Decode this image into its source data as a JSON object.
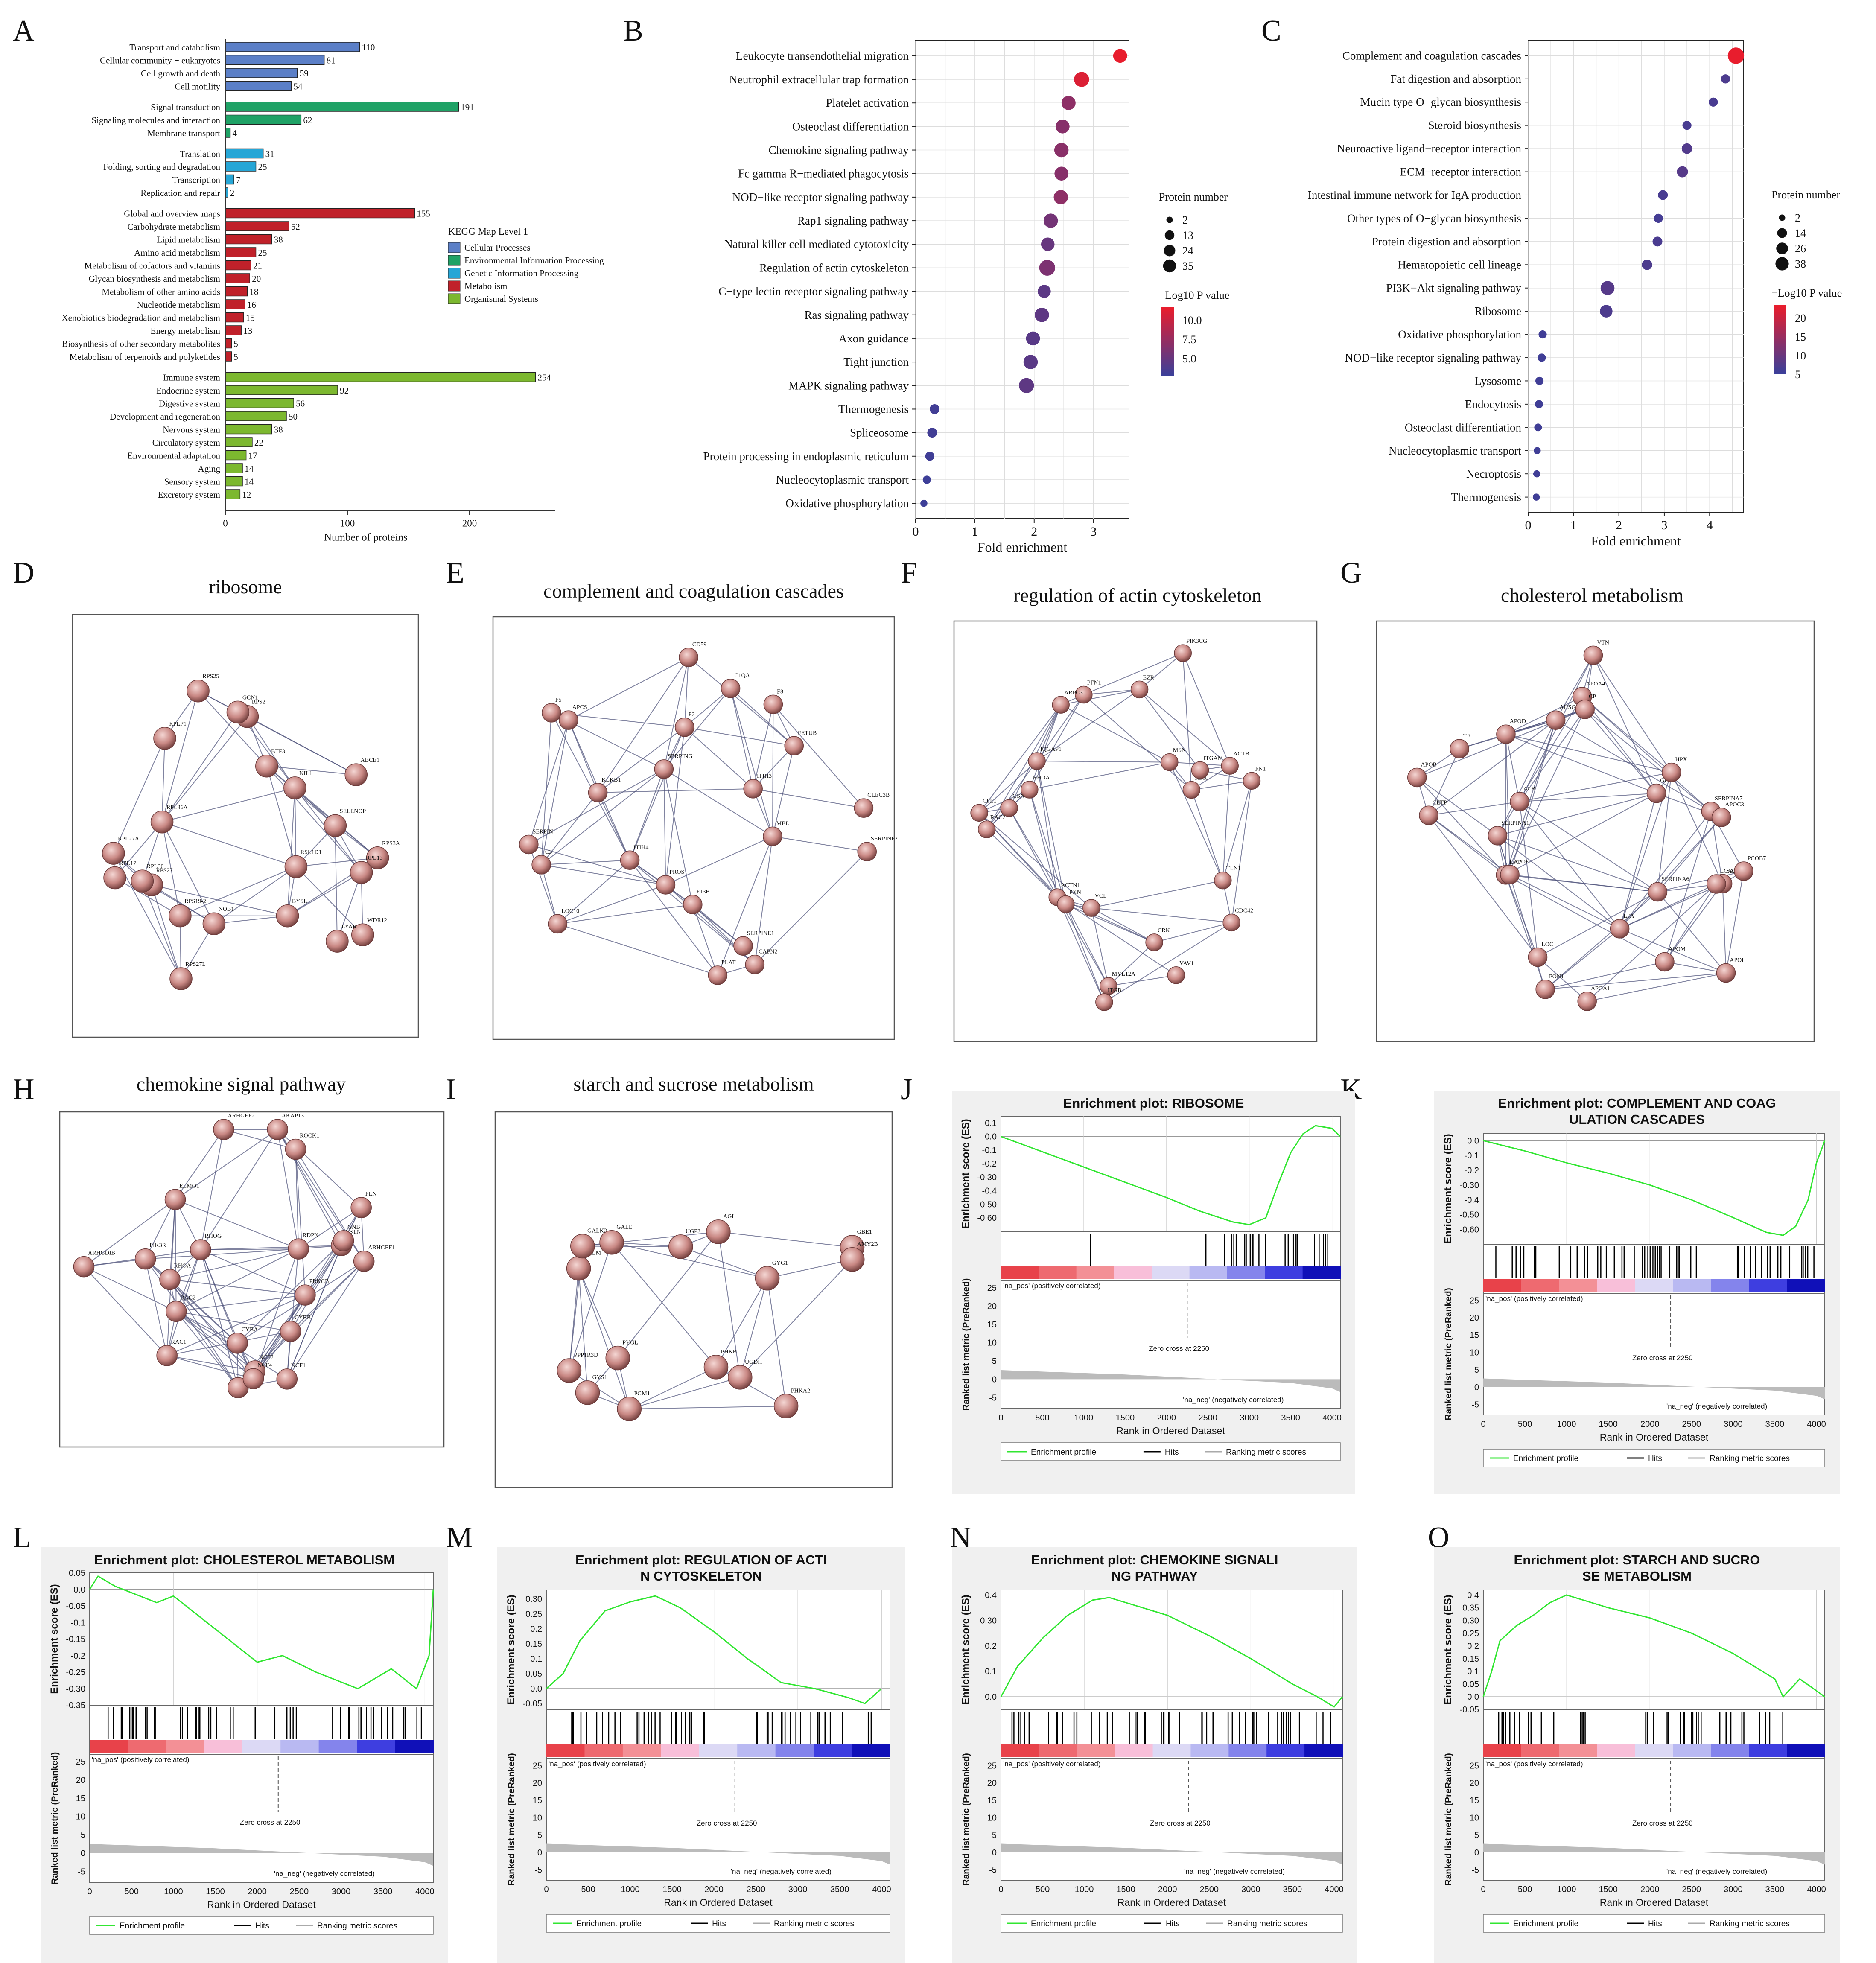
{
  "panel_letters": [
    "A",
    "B",
    "C",
    "D",
    "E",
    "F",
    "G",
    "H",
    "I",
    "J",
    "K",
    "L",
    "M",
    "N",
    "O"
  ],
  "chart_data": [
    {
      "panel": "A",
      "type": "bar",
      "orientation": "horizontal",
      "xlabel": "Number of proteins",
      "xticks": [
        0,
        100,
        200
      ],
      "xlim": [
        0,
        270
      ],
      "legend_title": "KEGG Map Level 1",
      "legend_position": "right",
      "groups": [
        {
          "name": "Cellular Processes",
          "color": "#5b7fc7",
          "items": [
            {
              "label": "Transport and catabolism",
              "value": 110
            },
            {
              "label": "Cellular community − eukaryotes",
              "value": 81
            },
            {
              "label": "Cell growth and death",
              "value": 59
            },
            {
              "label": "Cell motility",
              "value": 54
            }
          ]
        },
        {
          "name": "Environmental Information Processing",
          "color": "#1fa266",
          "items": [
            {
              "label": "Signal transduction",
              "value": 191
            },
            {
              "label": "Signaling molecules and interaction",
              "value": 62
            },
            {
              "label": "Membrane transport",
              "value": 4
            }
          ]
        },
        {
          "name": "Genetic Information Processing",
          "color": "#26a6d6",
          "items": [
            {
              "label": "Translation",
              "value": 31
            },
            {
              "label": "Folding, sorting and degradation",
              "value": 25
            },
            {
              "label": "Transcription",
              "value": 7
            },
            {
              "label": "Replication and repair",
              "value": 2
            }
          ]
        },
        {
          "name": "Metabolism",
          "color": "#c0212a",
          "items": [
            {
              "label": "Global and overview maps",
              "value": 155
            },
            {
              "label": "Carbohydrate metabolism",
              "value": 52
            },
            {
              "label": "Lipid metabolism",
              "value": 38
            },
            {
              "label": "Amino acid metabolism",
              "value": 25
            },
            {
              "label": "Metabolism of cofactors and vitamins",
              "value": 21
            },
            {
              "label": "Glycan biosynthesis and metabolism",
              "value": 20
            },
            {
              "label": "Metabolism of other amino acids",
              "value": 18
            },
            {
              "label": "Nucleotide metabolism",
              "value": 16
            },
            {
              "label": "Xenobiotics biodegradation and metabolism",
              "value": 15
            },
            {
              "label": "Energy metabolism",
              "value": 13
            },
            {
              "label": "Biosynthesis of other secondary metabolites",
              "value": 5
            },
            {
              "label": "Metabolism of terpenoids and polyketides",
              "value": 5
            }
          ]
        },
        {
          "name": "Organismal Systems",
          "color": "#7cb82f",
          "items": [
            {
              "label": "Immune system",
              "value": 254
            },
            {
              "label": "Endocrine system",
              "value": 92
            },
            {
              "label": "Digestive system",
              "value": 56
            },
            {
              "label": "Development and regeneration",
              "value": 50
            },
            {
              "label": "Nervous system",
              "value": 38
            },
            {
              "label": "Circulatory system",
              "value": 22
            },
            {
              "label": "Environmental adaptation",
              "value": 17
            },
            {
              "label": "Aging",
              "value": 14
            },
            {
              "label": "Sensory system",
              "value": 14
            },
            {
              "label": "Excretory system",
              "value": 12
            }
          ]
        }
      ]
    },
    {
      "panel": "B",
      "type": "scatter",
      "subtype": "bubble",
      "xlabel": "Fold enrichment",
      "xticks": [
        0,
        1,
        2,
        3
      ],
      "xlim": [
        0,
        3.6
      ],
      "size_legend_title": "Protein number",
      "size_legend": [
        2,
        13,
        24,
        35
      ],
      "color_legend_title": "−Log10 P value",
      "color_ticks": [
        "10.0",
        "7.5",
        "5.0"
      ],
      "color_range": [
        3,
        11
      ],
      "terms": [
        {
          "label": "Leukocyte transendothelial migration",
          "x": 3.45,
          "p": 11.0,
          "n": 24
        },
        {
          "label": "Neutrophil extracellular trap formation",
          "x": 2.8,
          "p": 10.4,
          "n": 30
        },
        {
          "label": "Platelet activation",
          "x": 2.58,
          "p": 6.8,
          "n": 25
        },
        {
          "label": "Osteoclast differentiation",
          "x": 2.48,
          "p": 6.5,
          "n": 24
        },
        {
          "label": "Chemokine signaling pathway",
          "x": 2.46,
          "p": 6.6,
          "n": 26
        },
        {
          "label": "Fc gamma R−mediated phagocytosis",
          "x": 2.46,
          "p": 6.5,
          "n": 24
        },
        {
          "label": "NOD−like receptor signaling pathway",
          "x": 2.45,
          "p": 6.8,
          "n": 26
        },
        {
          "label": "Rap1 signaling pathway",
          "x": 2.28,
          "p": 5.6,
          "n": 26
        },
        {
          "label": "Natural killer cell mediated cytotoxicity",
          "x": 2.23,
          "p": 5.0,
          "n": 22
        },
        {
          "label": "Regulation of actin cytoskeleton",
          "x": 2.22,
          "p": 6.0,
          "n": 35
        },
        {
          "label": "C−type lectin receptor signaling pathway",
          "x": 2.17,
          "p": 4.5,
          "n": 20
        },
        {
          "label": "Ras signaling pathway",
          "x": 2.13,
          "p": 4.6,
          "n": 26
        },
        {
          "label": "Axon guidance",
          "x": 1.98,
          "p": 4.3,
          "n": 24
        },
        {
          "label": "Tight junction",
          "x": 1.94,
          "p": 4.4,
          "n": 26
        },
        {
          "label": "MAPK signaling pathway",
          "x": 1.87,
          "p": 4.6,
          "n": 30
        },
        {
          "label": "Thermogenesis",
          "x": 0.32,
          "p": 3.3,
          "n": 8
        },
        {
          "label": "Spliceosome",
          "x": 0.28,
          "p": 3.3,
          "n": 8
        },
        {
          "label": "Protein processing in endoplasmic reticulum",
          "x": 0.24,
          "p": 3.2,
          "n": 6
        },
        {
          "label": "Nucleocytoplasmic transport",
          "x": 0.19,
          "p": 3.1,
          "n": 4
        },
        {
          "label": "Oxidative phosphorylation",
          "x": 0.14,
          "p": 3.1,
          "n": 2
        }
      ]
    },
    {
      "panel": "C",
      "type": "scatter",
      "subtype": "bubble",
      "xlabel": "Fold enrichment",
      "xticks": [
        0,
        1,
        2,
        3,
        4
      ],
      "xlim": [
        0,
        4.75
      ],
      "size_legend_title": "Protein number",
      "size_legend": [
        2,
        14,
        26,
        38
      ],
      "color_legend_title": "−Log10 P value",
      "color_ticks": [
        "20",
        "15",
        "10",
        "5"
      ],
      "color_range": [
        2,
        22
      ],
      "terms": [
        {
          "label": "Complement and coagulation cascades",
          "x": 4.58,
          "p": 22.0,
          "n": 38
        },
        {
          "label": "Fat digestion and absorption",
          "x": 4.35,
          "p": 4.0,
          "n": 6
        },
        {
          "label": "Mucin type O−glycan biosynthesis",
          "x": 4.08,
          "p": 3.5,
          "n": 6
        },
        {
          "label": "Steroid biosynthesis",
          "x": 3.5,
          "p": 3.5,
          "n": 6
        },
        {
          "label": "Neuroactive ligand−receptor interaction",
          "x": 3.5,
          "p": 4.5,
          "n": 10
        },
        {
          "label": "ECM−receptor interaction",
          "x": 3.4,
          "p": 5.0,
          "n": 12
        },
        {
          "label": "Intestinal immune network for IgA production",
          "x": 2.97,
          "p": 3.5,
          "n": 8
        },
        {
          "label": "Other types of O−glycan biosynthesis",
          "x": 2.87,
          "p": 3.0,
          "n": 6
        },
        {
          "label": "Protein digestion and absorption",
          "x": 2.85,
          "p": 3.6,
          "n": 8
        },
        {
          "label": "Hematopoietic cell lineage",
          "x": 2.62,
          "p": 4.0,
          "n": 10
        },
        {
          "label": "PI3K−Akt signaling pathway",
          "x": 1.75,
          "p": 5.0,
          "n": 24
        },
        {
          "label": "Ribosome",
          "x": 1.72,
          "p": 4.0,
          "n": 18
        },
        {
          "label": "Oxidative phosphorylation",
          "x": 0.32,
          "p": 2.5,
          "n": 4
        },
        {
          "label": "NOD−like receptor signaling pathway",
          "x": 0.3,
          "p": 2.5,
          "n": 4
        },
        {
          "label": "Lysosome",
          "x": 0.25,
          "p": 2.5,
          "n": 4
        },
        {
          "label": "Endocytosis",
          "x": 0.24,
          "p": 2.5,
          "n": 4
        },
        {
          "label": "Osteoclast differentiation",
          "x": 0.22,
          "p": 2.5,
          "n": 3
        },
        {
          "label": "Nucleocytoplasmic transport",
          "x": 0.2,
          "p": 2.5,
          "n": 2
        },
        {
          "label": "Necroptosis",
          "x": 0.19,
          "p": 2.5,
          "n": 2
        },
        {
          "label": "Thermogenesis",
          "x": 0.18,
          "p": 2.5,
          "n": 2
        }
      ]
    },
    {
      "panel": "J",
      "type": "line",
      "title": "Enrichment plot: RIBOSOME",
      "ylim": [
        -0.7,
        0.15
      ],
      "yticks": [
        0.1,
        0.0,
        -0.1,
        -0.2,
        -0.3,
        -0.4,
        -0.5,
        -0.6
      ],
      "profile_x": [
        0,
        400,
        800,
        1200,
        1600,
        2000,
        2400,
        2800,
        3000,
        3200,
        3350,
        3500,
        3650,
        3800,
        4000,
        4100
      ],
      "profile_y": [
        0.0,
        -0.09,
        -0.18,
        -0.27,
        -0.36,
        -0.45,
        -0.55,
        -0.63,
        -0.65,
        -0.6,
        -0.35,
        -0.12,
        0.02,
        0.08,
        0.06,
        0.0
      ],
      "hits_ranges": [
        [
          1080,
          1080
        ],
        [
          2450,
          4000
        ]
      ]
    },
    {
      "panel": "K",
      "type": "line",
      "title": "Enrichment plot: COMPLEMENT AND COAGULATION CASCADES",
      "ylim": [
        -0.7,
        0.05
      ],
      "yticks": [
        0.0,
        -0.1,
        -0.2,
        -0.3,
        -0.4,
        -0.5,
        -0.6
      ],
      "profile_x": [
        0,
        500,
        1000,
        1500,
        2000,
        2500,
        3000,
        3400,
        3600,
        3750,
        3900,
        4000,
        4100
      ],
      "profile_y": [
        0.0,
        -0.07,
        -0.15,
        -0.22,
        -0.3,
        -0.4,
        -0.52,
        -0.62,
        -0.64,
        -0.58,
        -0.4,
        -0.15,
        0.0
      ],
      "hits_ranges": [
        [
          100,
          2600
        ],
        [
          2900,
          4050
        ]
      ]
    },
    {
      "panel": "L",
      "type": "line",
      "title": "Enrichment plot: CHOLESTEROL METABOLISM",
      "ylim": [
        -0.35,
        0.05
      ],
      "yticks": [
        0.05,
        0.0,
        -0.05,
        -0.1,
        -0.15,
        -0.2,
        -0.25,
        -0.3,
        -0.35
      ],
      "profile_x": [
        0,
        100,
        300,
        600,
        800,
        1000,
        1500,
        2000,
        2300,
        2700,
        3200,
        3600,
        3900,
        4050,
        4100
      ],
      "profile_y": [
        0.0,
        0.04,
        0.01,
        -0.02,
        -0.04,
        -0.02,
        -0.12,
        -0.22,
        -0.2,
        -0.25,
        -0.3,
        -0.24,
        -0.3,
        -0.2,
        0.0
      ],
      "hits_ranges": [
        [
          100,
          2500
        ],
        [
          2800,
          4050
        ]
      ]
    },
    {
      "panel": "M",
      "type": "line",
      "title": "Enrichment plot: REGULATION OF ACTIN CYTOSKELETON",
      "ylim": [
        -0.07,
        0.33
      ],
      "yticks": [
        0.3,
        0.25,
        0.2,
        0.15,
        0.1,
        0.05,
        0.0,
        -0.05
      ],
      "profile_x": [
        0,
        200,
        400,
        700,
        1000,
        1300,
        1600,
        2000,
        2400,
        2800,
        3200,
        3600,
        3800,
        4000
      ],
      "profile_y": [
        0.0,
        0.05,
        0.16,
        0.26,
        0.29,
        0.31,
        0.27,
        0.19,
        0.1,
        0.02,
        0.0,
        -0.03,
        -0.05,
        0.0
      ],
      "hits_ranges": [
        [
          50,
          1900
        ],
        [
          2400,
          3900
        ]
      ]
    },
    {
      "panel": "N",
      "type": "line",
      "title": "Enrichment plot: CHEMOKINE SIGNALING PATHWAY",
      "ylim": [
        -0.05,
        0.42
      ],
      "yticks": [
        0.4,
        0.3,
        0.2,
        0.1,
        0.0
      ],
      "profile_x": [
        0,
        200,
        500,
        800,
        1100,
        1300,
        1600,
        2000,
        2500,
        3000,
        3500,
        3800,
        4000,
        4100
      ],
      "profile_y": [
        0.0,
        0.12,
        0.23,
        0.32,
        0.38,
        0.39,
        0.36,
        0.32,
        0.24,
        0.15,
        0.05,
        0.0,
        -0.04,
        0.0
      ],
      "hits_ranges": [
        [
          20,
          2200
        ],
        [
          2400,
          4000
        ]
      ]
    },
    {
      "panel": "O",
      "type": "line",
      "title": "Enrichment plot: STARCH AND SUCROSE METABOLISM",
      "ylim": [
        -0.05,
        0.42
      ],
      "yticks": [
        0.4,
        0.35,
        0.3,
        0.25,
        0.2,
        0.15,
        0.1,
        0.05,
        0.0,
        -0.05
      ],
      "profile_x": [
        0,
        100,
        200,
        400,
        600,
        800,
        1000,
        1500,
        2000,
        2500,
        3000,
        3500,
        3600,
        3800,
        4100
      ],
      "profile_y": [
        0.0,
        0.1,
        0.22,
        0.28,
        0.32,
        0.37,
        0.4,
        0.35,
        0.31,
        0.25,
        0.17,
        0.07,
        0.0,
        0.07,
        0.0
      ],
      "hits_ranges": [
        [
          100,
          1300
        ],
        [
          1900,
          3600
        ]
      ]
    }
  ],
  "gsea_common": {
    "ylabel_top": "Enrichment score (ES)",
    "ylabel_bottom": "Ranked list metric (PreRanked)",
    "xlabel": "Rank in Ordered Dataset",
    "xticks": [
      0,
      500,
      1000,
      1500,
      2000,
      2500,
      3000,
      3500,
      4000
    ],
    "bottom_yticks": [
      25,
      20,
      15,
      10,
      5,
      0,
      -5
    ],
    "pos_label": "'na_pos' (positively correlated)",
    "neg_label": "'na_neg' (negatively correlated)",
    "zero_cross": "Zero cross at 2250",
    "legend_profile": "Enrichment profile",
    "legend_hits": "Hits",
    "legend_metric": "Ranking metric scores"
  },
  "networks": [
    {
      "panel": "D",
      "title": "ribosome",
      "labels": [
        "WDR12",
        "RSL1D1",
        "LYAR",
        "BYSL",
        "NOB1",
        "RPS27L",
        "RPS27",
        "RPS19-2",
        "RPL30",
        "RPL17",
        "RPL27A",
        "RPL36A",
        "RPLP1",
        "RPS25",
        "RPS2",
        "BTF3",
        "GCN1",
        "NIL1",
        "ABCE1",
        "SELENOP",
        "RPS3A",
        "RPL13"
      ]
    },
    {
      "panel": "E",
      "title": "complement and coagulation cascades",
      "labels": [
        "SERPINF2",
        "CAPN2",
        "SERPINE1",
        "PLAT",
        "F13B",
        "PROS",
        "LOC10",
        "ITIH4",
        "SERPIN",
        "C3",
        "F5",
        "KLKB1",
        "APCS",
        "SERPING1",
        "CD59",
        "F2",
        "F8",
        "C1QA",
        "FETUB",
        "MBL",
        "ITIH3",
        "CLEC3B"
      ]
    },
    {
      "panel": "F",
      "title": "regulation of actin cytoskeleton",
      "labels": [
        "CDC42",
        "VAV1",
        "CRK",
        "MYL12A",
        "ITGB1",
        "VCL",
        "ACTN1",
        "PXN",
        "RAC2",
        "CFL1",
        "RHOA",
        "IQGAP1",
        "GSN",
        "PFN1",
        "ARPC3",
        "PIK3CG",
        "MSN",
        "EZR",
        "RDX",
        "ITGAM",
        "FN1",
        "ACTB",
        "TLN1"
      ]
    },
    {
      "panel": "G",
      "title": "cholesterol metabolism",
      "labels": [
        "APOH",
        "SAA4",
        "APOM",
        "SERPINA6",
        "PON1",
        "LPA",
        "APOA1",
        "LOC",
        "LPO",
        "APOE",
        "SERPINA1",
        "APOB",
        "CETP",
        "ALB",
        "APOD",
        "TF",
        "APOA4",
        "CP",
        "AHSG",
        "VTN",
        "GC",
        "HPX",
        "SERPINA7",
        "PCOB7",
        "LCAT",
        "APOC3"
      ]
    },
    {
      "panel": "H",
      "title": "chemokine signal pathway",
      "labels": [
        "PRKCB",
        "CYBB",
        "NCF2",
        "NCF1",
        "PRKCD",
        "NCF4",
        "CYBA",
        "RAC2",
        "RAC1",
        "RHOA",
        "PIK3R",
        "ARHGDIB",
        "RHOG",
        "ELMO1",
        "ARHGEF2",
        "AKAP13",
        "ROCK1",
        "RDPN",
        "CSTN",
        "PLN",
        "GNB",
        "ARHGEF1"
      ]
    },
    {
      "panel": "I",
      "title": "starch and sucrose metabolism",
      "labels": [
        "PHKA2",
        "PHKB",
        "UGDH",
        "PGM1",
        "PYGL",
        "GYS1",
        "PPP1R3D",
        "GALM",
        "GALK2",
        "GALE",
        "UGP2",
        "AGL",
        "GBE1",
        "GYG1",
        "AMY2B"
      ]
    }
  ]
}
